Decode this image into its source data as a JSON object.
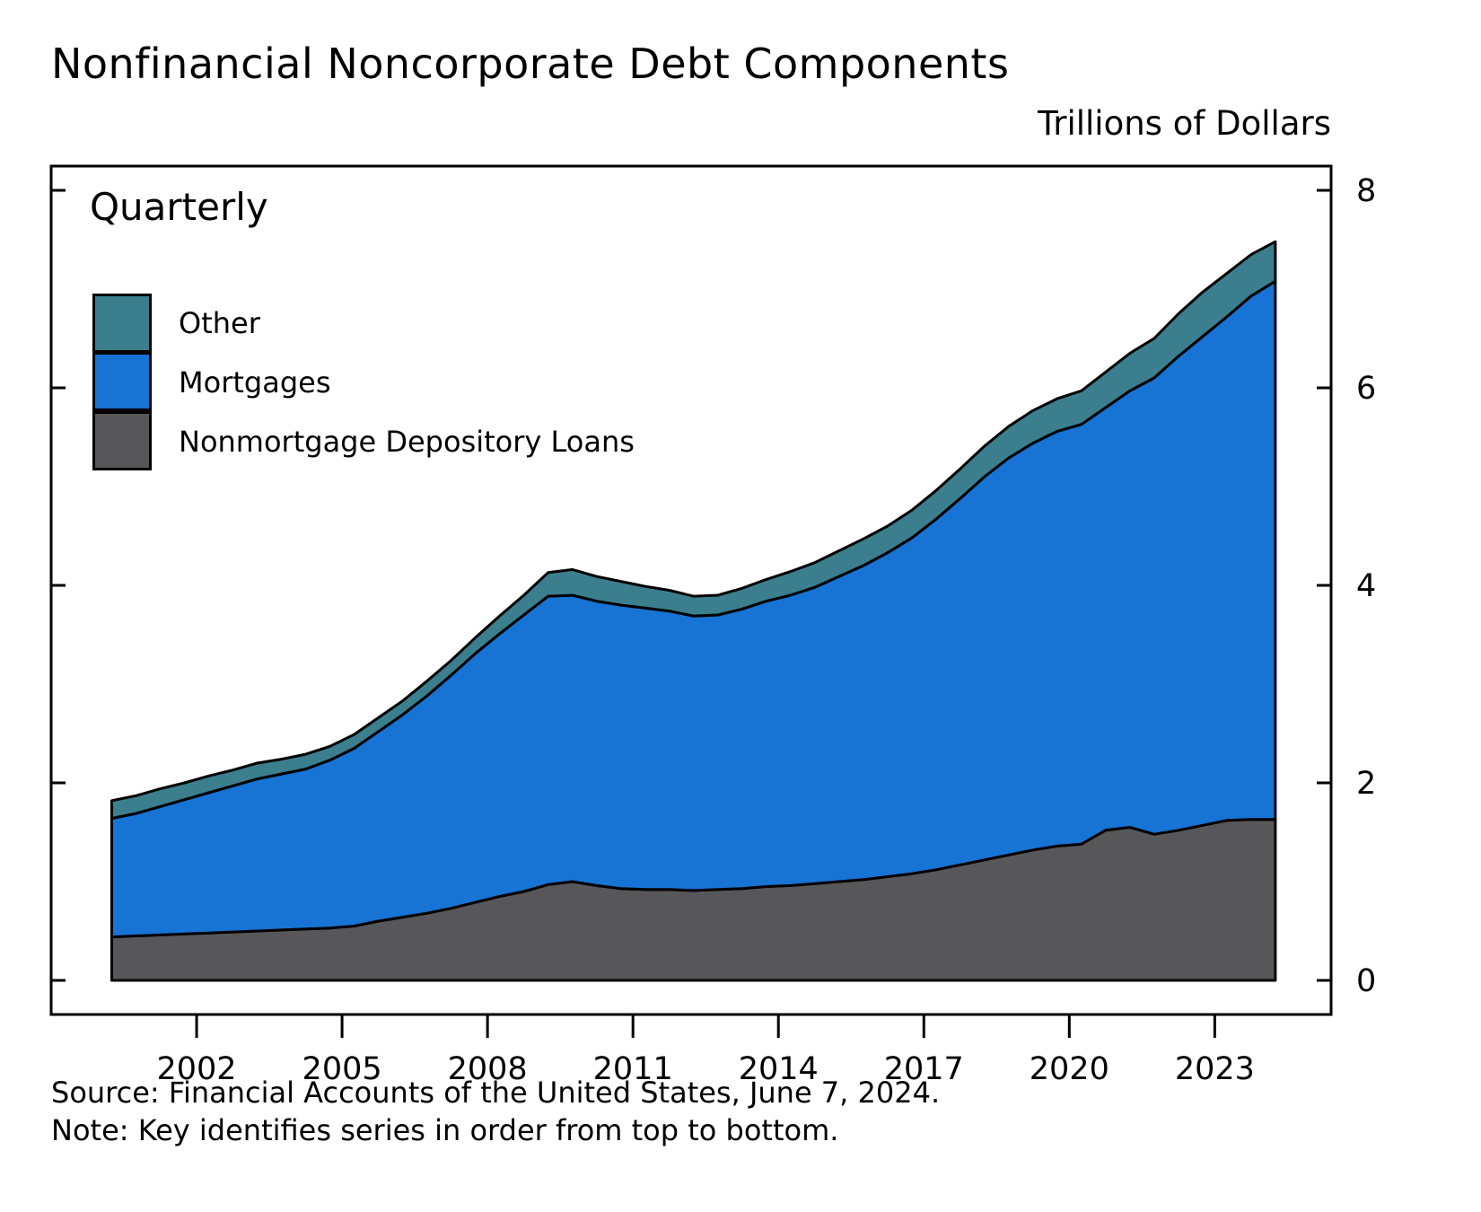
{
  "title": "Nonfinancial Noncorporate Debt Components",
  "units_label": "Trillions of Dollars",
  "frequency_label": "Quarterly",
  "source_line": "Source: Financial Accounts of the United States, June 7, 2024.",
  "note_line": "Note: Key identifies series in order from top to bottom.",
  "legend": [
    {
      "label": "Other",
      "color": "#3b7f8e"
    },
    {
      "label": "Mortgages",
      "color": "#1773d4"
    },
    {
      "label": "Nonmortgage Depository Loans",
      "color": "#575759"
    }
  ],
  "chart_data": {
    "type": "area",
    "stacked": true,
    "title": "Nonfinancial Noncorporate Debt Components",
    "ylabel": "Trillions of Dollars",
    "xlabel": "",
    "frequency": "Quarterly",
    "xlim": [
      1999.0,
      2025.4
    ],
    "ylim": [
      0,
      8
    ],
    "yticks": [
      0,
      2,
      4,
      6,
      8
    ],
    "xticks": [
      2002,
      2005,
      2008,
      2011,
      2014,
      2017,
      2020,
      2023
    ],
    "x": [
      2000.25,
      2000.75,
      2001.25,
      2001.75,
      2002.25,
      2002.75,
      2003.25,
      2003.75,
      2004.25,
      2004.75,
      2005.25,
      2005.75,
      2006.25,
      2006.75,
      2007.25,
      2007.75,
      2008.25,
      2008.75,
      2009.25,
      2009.75,
      2010.25,
      2010.75,
      2011.25,
      2011.75,
      2012.25,
      2012.75,
      2013.25,
      2013.75,
      2014.25,
      2014.75,
      2015.25,
      2015.75,
      2016.25,
      2016.75,
      2017.25,
      2017.75,
      2018.25,
      2018.75,
      2019.25,
      2019.75,
      2020.25,
      2020.75,
      2021.25,
      2021.75,
      2022.25,
      2022.75,
      2023.25,
      2023.75,
      2024.25
    ],
    "series": [
      {
        "name": "Nonmortgage Depository Loans",
        "color": "#575759",
        "values": [
          0.44,
          0.45,
          0.46,
          0.47,
          0.48,
          0.49,
          0.5,
          0.51,
          0.52,
          0.53,
          0.55,
          0.6,
          0.64,
          0.68,
          0.73,
          0.79,
          0.85,
          0.9,
          0.97,
          1.0,
          0.96,
          0.93,
          0.92,
          0.92,
          0.91,
          0.92,
          0.93,
          0.95,
          0.96,
          0.98,
          1.0,
          1.02,
          1.05,
          1.08,
          1.12,
          1.17,
          1.22,
          1.27,
          1.32,
          1.36,
          1.38,
          1.52,
          1.55,
          1.48,
          1.52,
          1.57,
          1.62,
          1.63,
          1.63
        ]
      },
      {
        "name": "Mortgages",
        "color": "#1773d4",
        "values": [
          1.2,
          1.24,
          1.3,
          1.36,
          1.42,
          1.48,
          1.54,
          1.58,
          1.62,
          1.7,
          1.8,
          1.92,
          2.05,
          2.2,
          2.36,
          2.52,
          2.66,
          2.8,
          2.92,
          2.9,
          2.88,
          2.87,
          2.85,
          2.82,
          2.78,
          2.78,
          2.83,
          2.89,
          2.94,
          3.0,
          3.09,
          3.18,
          3.28,
          3.4,
          3.55,
          3.71,
          3.88,
          4.02,
          4.12,
          4.2,
          4.25,
          4.28,
          4.42,
          4.62,
          4.8,
          4.95,
          5.1,
          5.3,
          5.45
        ]
      },
      {
        "name": "Other",
        "color": "#3b7f8e",
        "values": [
          0.18,
          0.18,
          0.18,
          0.17,
          0.17,
          0.16,
          0.16,
          0.15,
          0.15,
          0.14,
          0.14,
          0.14,
          0.14,
          0.15,
          0.15,
          0.16,
          0.18,
          0.2,
          0.24,
          0.26,
          0.25,
          0.24,
          0.22,
          0.21,
          0.2,
          0.2,
          0.21,
          0.22,
          0.24,
          0.25,
          0.26,
          0.27,
          0.27,
          0.28,
          0.29,
          0.3,
          0.31,
          0.32,
          0.33,
          0.33,
          0.34,
          0.36,
          0.38,
          0.4,
          0.43,
          0.45,
          0.44,
          0.42,
          0.4
        ]
      }
    ],
    "legend_position": "upper-left-inside",
    "grid": false
  }
}
